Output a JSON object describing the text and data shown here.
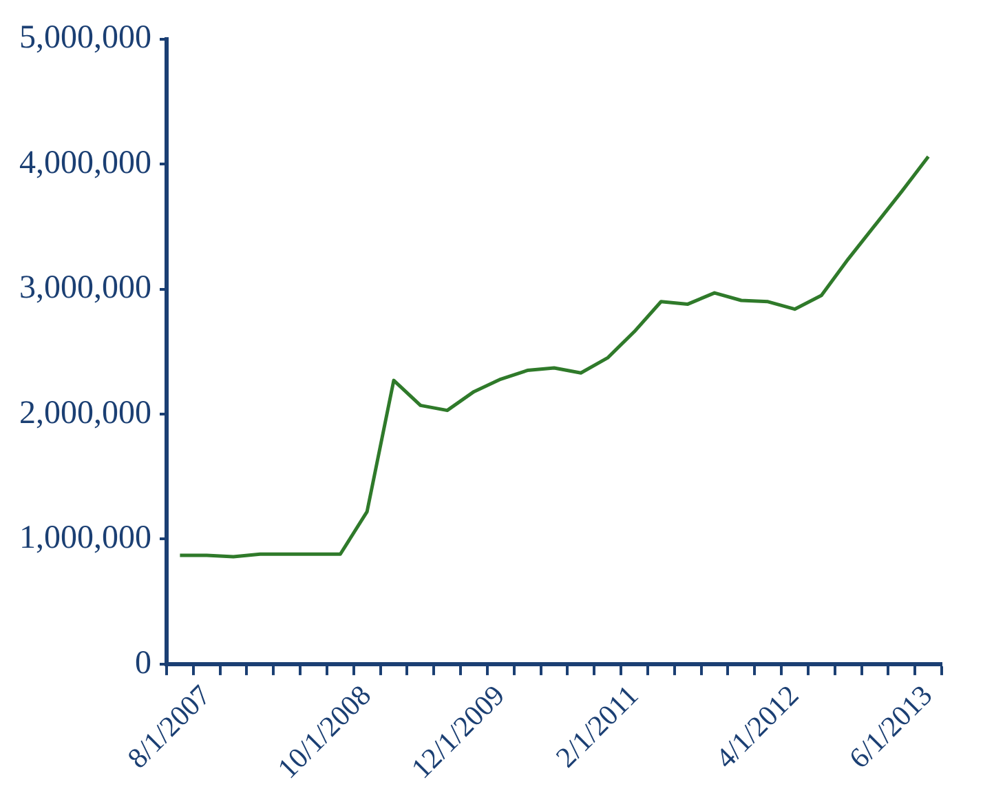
{
  "chart_data": {
    "type": "line",
    "categories": [
      null,
      "8/1/2007",
      null,
      null,
      null,
      null,
      null,
      "10/1/2008",
      null,
      null,
      null,
      null,
      "12/1/2009",
      null,
      null,
      null,
      null,
      "2/1/2011",
      null,
      null,
      null,
      null,
      null,
      "4/1/2012",
      null,
      null,
      null,
      null,
      "6/1/2013"
    ],
    "series": [
      {
        "color": "#2f7a2a",
        "values": [
          870000,
          870000,
          860000,
          880000,
          880000,
          880000,
          880000,
          1220000,
          2270000,
          2070000,
          2030000,
          2180000,
          2280000,
          2350000,
          2370000,
          2330000,
          2450000,
          2660000,
          2900000,
          2880000,
          2970000,
          2910000,
          2900000,
          2840000,
          2950000,
          3240000,
          3510000,
          3780000,
          4060000
        ]
      }
    ],
    "ylim": [
      0,
      5000000
    ],
    "yticks": [
      0,
      {
        "value": 1000000,
        "label": "1,000,000"
      },
      {
        "value": 2000000,
        "label": "2,000,000"
      },
      {
        "value": 3000000,
        "label": "3,000,000"
      },
      {
        "value": 4000000,
        "label": "4,000,000"
      },
      {
        "value": 5000000,
        "label": "5,000,000"
      }
    ],
    "grid": false,
    "legend": false,
    "marker": "none",
    "line_style": "solid"
  }
}
